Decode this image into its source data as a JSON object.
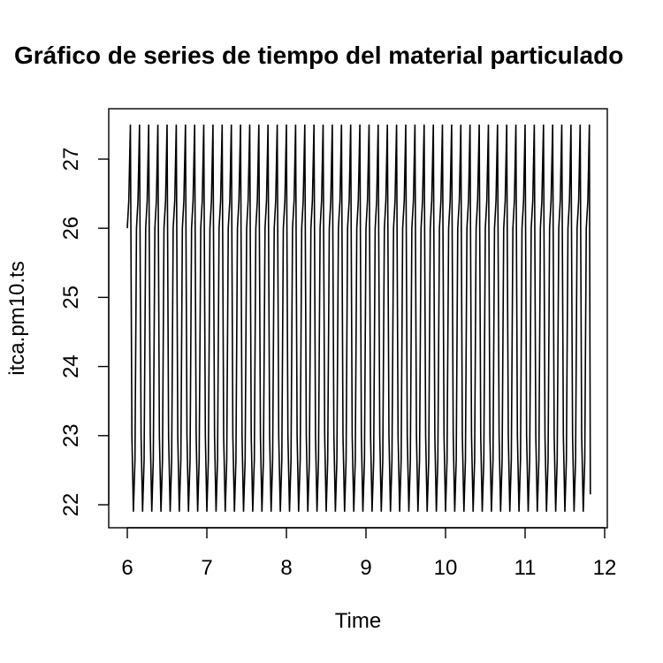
{
  "chart_data": {
    "type": "line",
    "title": "Gráfico de series de tiempo del material particulado",
    "xlabel": "Time",
    "ylabel": "itca.pm10.ts",
    "xlim": [
      6,
      12
    ],
    "ylim": [
      22,
      27
    ],
    "xticks": [
      "6",
      "7",
      "8",
      "9",
      "10",
      "11",
      "12"
    ],
    "yticks": [
      "22",
      "23",
      "24",
      "25",
      "26",
      "27"
    ],
    "frequency": 52,
    "cycle": {
      "offsets": [
        0,
        1,
        2,
        3,
        4,
        5
      ],
      "values": [
        26.0,
        26.4,
        27.5,
        23.0,
        21.9,
        22.65
      ]
    },
    "start": 6.0,
    "end": 11.82,
    "final_value": 22.15,
    "series": [
      {
        "color": "#000000",
        "pattern": [
          26.0,
          26.4,
          27.5,
          23.0,
          21.9,
          22.65,
          22.15,
          22.65,
          21.9,
          22.15
        ]
      }
    ],
    "grid": false
  }
}
